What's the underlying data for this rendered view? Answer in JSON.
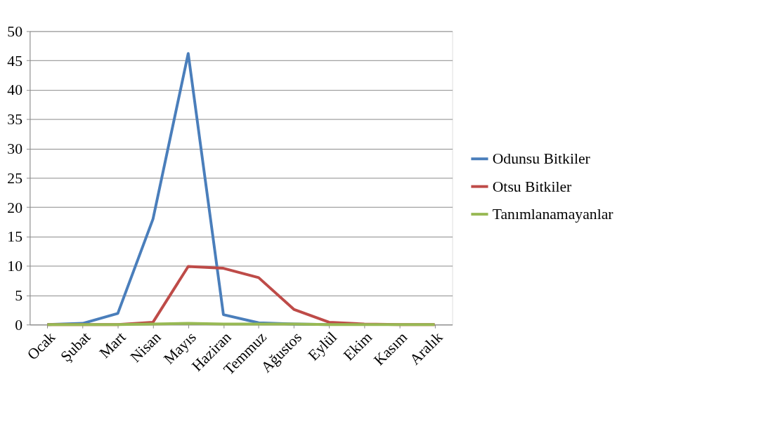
{
  "chart_data": {
    "type": "line",
    "categories": [
      "Ocak",
      "Şubat",
      "Mart",
      "Nisan",
      "Mayıs",
      "Haziran",
      "Temmuz",
      "Ağustos",
      "Eylül",
      "Ekim",
      "Kasım",
      "Aralık"
    ],
    "series": [
      {
        "name": "Odunsu Bitkiler",
        "color": "#4a7ebb",
        "values": [
          0,
          0.2,
          1.9,
          18,
          46.2,
          1.7,
          0.3,
          0.1,
          0,
          null,
          null,
          null
        ]
      },
      {
        "name": "Otsu Bitkiler",
        "color": "#be4b48",
        "values": [
          0,
          0,
          0,
          0.4,
          9.9,
          9.6,
          8,
          2.6,
          0.4,
          0.1,
          0,
          0
        ]
      },
      {
        "name": "Tanımlanamayanlar",
        "color": "#98b954",
        "values": [
          0,
          0,
          0,
          0.1,
          0.2,
          0.1,
          0.1,
          0.1,
          0,
          0,
          0,
          0
        ]
      }
    ],
    "ylim": [
      0,
      50
    ],
    "yticks": [
      0,
      5,
      10,
      15,
      20,
      25,
      30,
      35,
      40,
      45,
      50
    ],
    "grid": "y",
    "legend": "right",
    "marker": "none",
    "line_style": "solid"
  }
}
